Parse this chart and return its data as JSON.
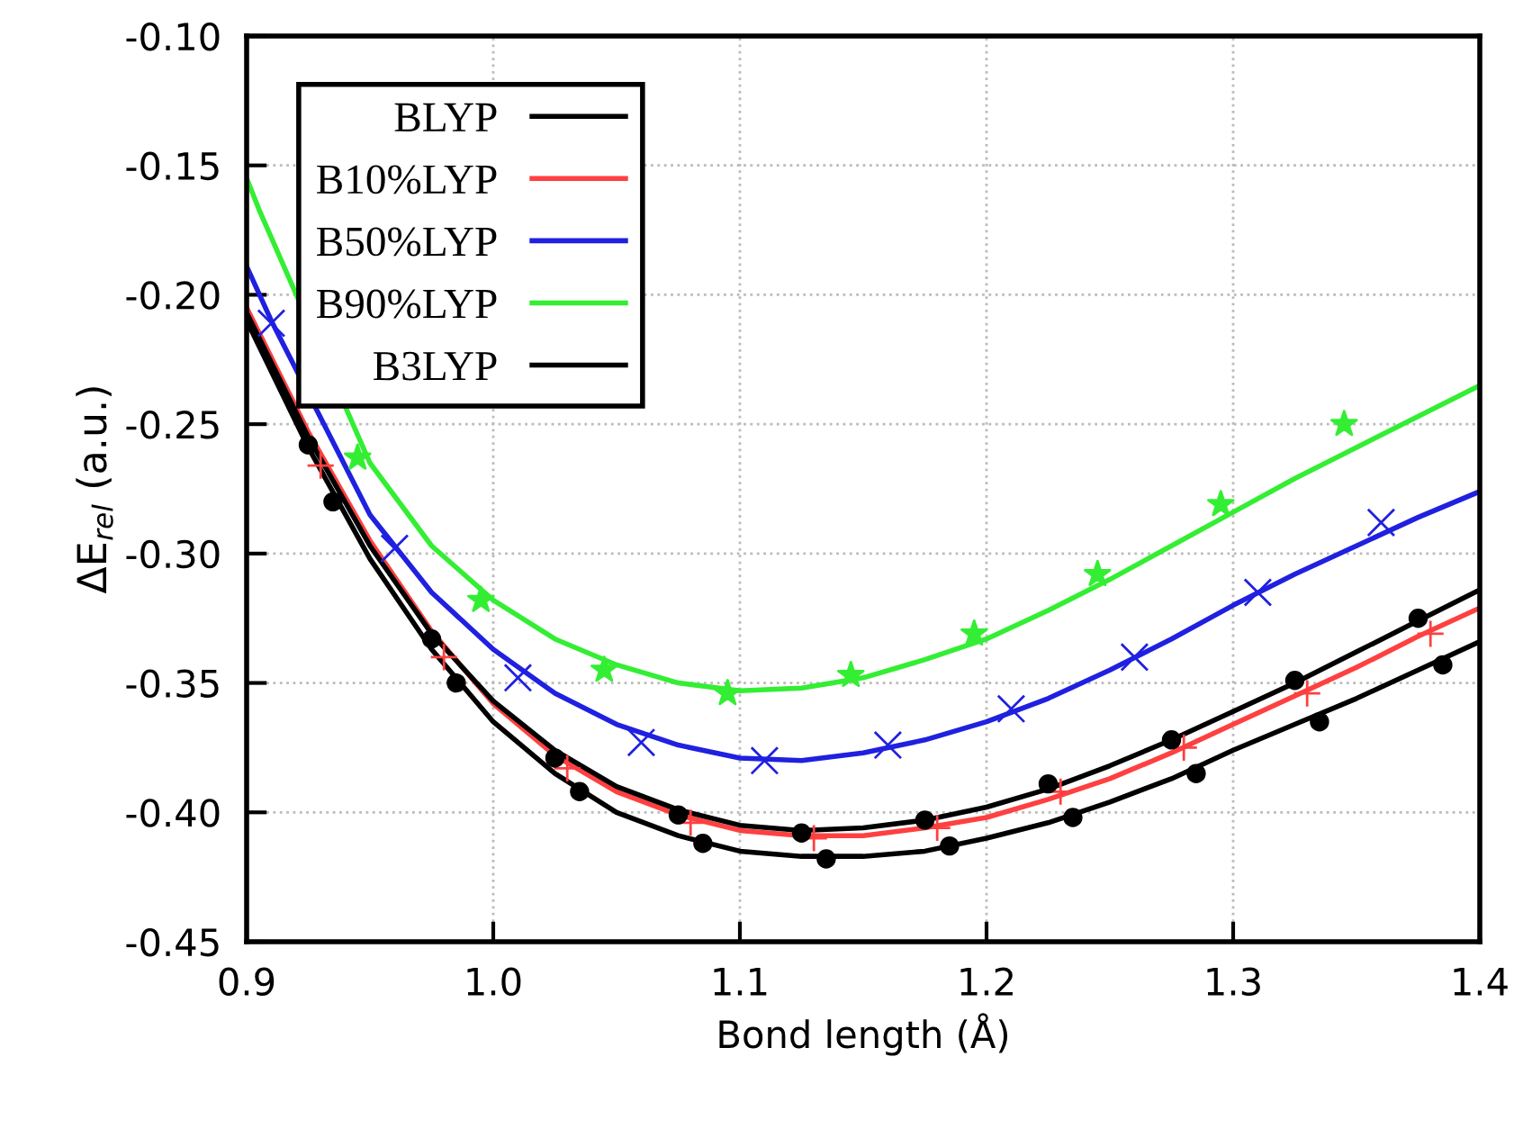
{
  "chart_data": {
    "type": "line",
    "xlabel": "Bond length (Å)",
    "ylabel": "ΔE$_{rel}$ (a.u.)",
    "xlim": [
      0.9,
      1.4
    ],
    "ylim": [
      -0.45,
      -0.1
    ],
    "xticks": [
      0.9,
      {
        "value": 1.0,
        "label": "1.0"
      },
      1.1,
      1.2,
      1.3,
      {
        "value": 1.4,
        "label": "1.4"
      }
    ],
    "yticks": [
      {
        "value": -0.45,
        "label": "-0.45"
      },
      {
        "value": -0.4,
        "label": "-0.40"
      },
      {
        "value": -0.35,
        "label": "-0.35"
      },
      {
        "value": -0.3,
        "label": "-0.30"
      },
      {
        "value": -0.25,
        "label": "-0.25"
      },
      {
        "value": -0.2,
        "label": "-0.20"
      },
      {
        "value": -0.15,
        "label": "-0.15"
      },
      {
        "value": -0.1,
        "label": "-0.10"
      }
    ],
    "grid": true,
    "legend": "top left",
    "line_style": "solid",
    "series": [
      {
        "name": "BLYP",
        "color": "#000000",
        "x": [
          0.9,
          0.925,
          0.95,
          0.975,
          1.0,
          1.025,
          1.05,
          1.075,
          1.1,
          1.125,
          1.15,
          1.175,
          1.2,
          1.225,
          1.25,
          1.275,
          1.3,
          1.325,
          1.35,
          1.375,
          1.4
        ],
        "values": [
          -0.21,
          -0.259,
          -0.302,
          -0.337,
          -0.365,
          -0.385,
          -0.4,
          -0.409,
          -0.415,
          -0.417,
          -0.417,
          -0.415,
          -0.41,
          -0.404,
          -0.396,
          -0.387,
          -0.376,
          -0.366,
          -0.356,
          -0.345,
          -0.334
        ]
      },
      {
        "name": "B10%LYP",
        "color": "#ff4040",
        "x": [
          0.9,
          0.925,
          0.95,
          0.975,
          1.0,
          1.025,
          1.05,
          1.075,
          1.1,
          1.125,
          1.15,
          1.175,
          1.2,
          1.225,
          1.25,
          1.275,
          1.3,
          1.325,
          1.35,
          1.375,
          1.4
        ],
        "values": [
          -0.205,
          -0.253,
          -0.295,
          -0.33,
          -0.358,
          -0.378,
          -0.392,
          -0.401,
          -0.407,
          -0.409,
          -0.409,
          -0.406,
          -0.402,
          -0.395,
          -0.387,
          -0.377,
          -0.366,
          -0.355,
          -0.344,
          -0.332,
          -0.321
        ]
      },
      {
        "name": "B50%LYP",
        "color": "#2020e0",
        "x": [
          0.9,
          0.91,
          0.95,
          0.975,
          1.0,
          1.025,
          1.05,
          1.075,
          1.1,
          1.125,
          1.15,
          1.175,
          1.2,
          1.225,
          1.25,
          1.275,
          1.3,
          1.325,
          1.35,
          1.375,
          1.4
        ],
        "values": [
          -0.189,
          -0.21,
          -0.285,
          -0.315,
          -0.337,
          -0.354,
          -0.366,
          -0.374,
          -0.379,
          -0.38,
          -0.377,
          -0.372,
          -0.365,
          -0.356,
          -0.345,
          -0.333,
          -0.32,
          -0.308,
          -0.297,
          -0.286,
          -0.276
        ]
      },
      {
        "name": "B90%LYP",
        "color": "#33ee33",
        "x": [
          0.9,
          0.905,
          0.95,
          0.975,
          1.0,
          1.025,
          1.05,
          1.075,
          1.1,
          1.125,
          1.15,
          1.175,
          1.2,
          1.225,
          1.25,
          1.275,
          1.3,
          1.325,
          1.35,
          1.375,
          1.4
        ],
        "values": [
          -0.155,
          -0.167,
          -0.265,
          -0.297,
          -0.318,
          -0.333,
          -0.343,
          -0.35,
          -0.353,
          -0.352,
          -0.348,
          -0.341,
          -0.333,
          -0.322,
          -0.31,
          -0.297,
          -0.284,
          -0.271,
          -0.259,
          -0.247,
          -0.235
        ]
      },
      {
        "name": "B3LYP",
        "color": "#000000",
        "x": [
          0.9,
          0.925,
          0.95,
          0.975,
          1.0,
          1.025,
          1.05,
          1.075,
          1.1,
          1.125,
          1.15,
          1.175,
          1.2,
          1.225,
          1.25,
          1.275,
          1.3,
          1.325,
          1.35,
          1.375,
          1.4
        ],
        "values": [
          -0.207,
          -0.255,
          -0.297,
          -0.331,
          -0.357,
          -0.376,
          -0.39,
          -0.399,
          -0.405,
          -0.407,
          -0.406,
          -0.403,
          -0.398,
          -0.391,
          -0.382,
          -0.372,
          -0.361,
          -0.35,
          -0.338,
          -0.326,
          -0.314
        ]
      },
      {
        "color": "#000000",
        "type": "scatter",
        "marker": "circle",
        "x": [
          0.935,
          0.985,
          1.035,
          1.085,
          1.135,
          1.185,
          1.235,
          1.285,
          1.335,
          1.385
        ],
        "values": [
          -0.28,
          -0.35,
          -0.392,
          -0.412,
          -0.418,
          -0.413,
          -0.402,
          -0.385,
          -0.365,
          -0.343
        ]
      },
      {
        "color": "#ff4040",
        "type": "scatter",
        "marker": "plus",
        "x": [
          0.93,
          0.98,
          1.03,
          1.08,
          1.13,
          1.18,
          1.23,
          1.28,
          1.33,
          1.38
        ],
        "values": [
          -0.266,
          -0.34,
          -0.383,
          -0.404,
          -0.41,
          -0.406,
          -0.392,
          -0.375,
          -0.354,
          -0.331
        ]
      },
      {
        "color": "#2020e0",
        "type": "scatter",
        "marker": "cross",
        "x": [
          0.91,
          0.96,
          1.01,
          1.06,
          1.11,
          1.16,
          1.21,
          1.26,
          1.31,
          1.36
        ],
        "values": [
          -0.211,
          -0.298,
          -0.348,
          -0.373,
          -0.38,
          -0.374,
          -0.36,
          -0.34,
          -0.315,
          -0.288
        ]
      },
      {
        "color": "#33ee33",
        "type": "scatter",
        "marker": "star",
        "x": [
          0.945,
          0.995,
          1.045,
          1.095,
          1.145,
          1.195,
          1.245,
          1.295,
          1.345
        ],
        "values": [
          -0.263,
          -0.318,
          -0.345,
          -0.354,
          -0.347,
          -0.331,
          -0.308,
          -0.281,
          -0.25
        ]
      },
      {
        "color": "#000000",
        "type": "scatter",
        "marker": "circle",
        "x": [
          0.925,
          0.975,
          1.025,
          1.075,
          1.125,
          1.175,
          1.225,
          1.275,
          1.325,
          1.375
        ],
        "values": [
          -0.258,
          -0.333,
          -0.379,
          -0.401,
          -0.408,
          -0.403,
          -0.389,
          -0.372,
          -0.349,
          -0.325
        ]
      }
    ]
  }
}
